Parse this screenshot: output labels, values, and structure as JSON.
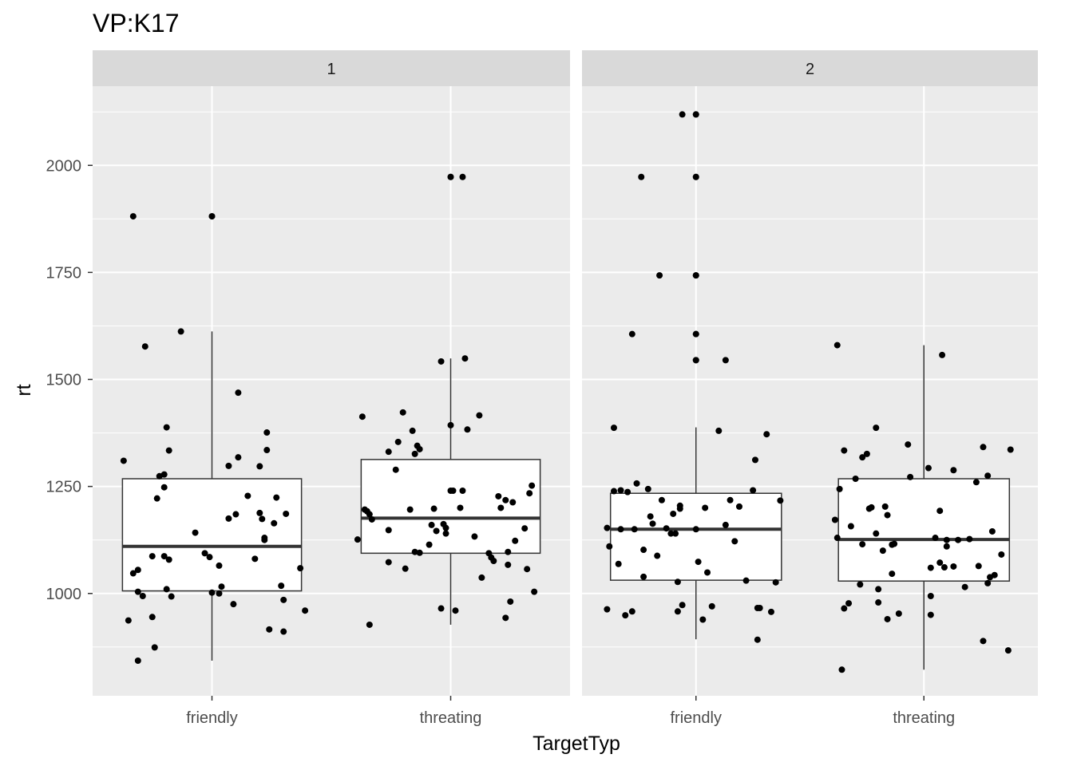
{
  "chart_data": {
    "type": "box",
    "title": "VP:K17",
    "xlabel": "TargetTyp",
    "ylabel": "rt",
    "ylim": [
      761,
      2185
    ],
    "y_ticks": [
      1000,
      1250,
      1500,
      1750,
      2000
    ],
    "y_tick_labels": [
      "1000",
      "1250",
      "1500",
      "1750",
      "2000"
    ],
    "categories": [
      "friendly",
      "threating"
    ],
    "grid": true,
    "facets": [
      {
        "label": "1",
        "boxes": [
          {
            "category": "friendly",
            "q1": 1006,
            "median": 1110,
            "q3": 1268,
            "whisker_low": 843,
            "whisker_high": 1612,
            "outliers": [
              1881
            ],
            "points": [
              [
                -0.37,
                1310
              ],
              [
                -0.33,
                1881
              ],
              [
                -0.35,
                937
              ],
              [
                -0.31,
                1004
              ],
              [
                -0.29,
                994
              ],
              [
                -0.33,
                1047
              ],
              [
                -0.31,
                1055
              ],
              [
                -0.31,
                843
              ],
              [
                -0.28,
                1577
              ],
              [
                -0.25,
                945
              ],
              [
                -0.25,
                1087
              ],
              [
                -0.23,
                1222
              ],
              [
                -0.24,
                874
              ],
              [
                -0.22,
                1274
              ],
              [
                -0.2,
                1087
              ],
              [
                -0.2,
                1278
              ],
              [
                -0.2,
                1248
              ],
              [
                -0.19,
                1388
              ],
              [
                -0.19,
                1010
              ],
              [
                -0.18,
                1079
              ],
              [
                -0.18,
                1334
              ],
              [
                -0.17,
                993
              ],
              [
                -0.13,
                1612
              ],
              [
                -0.07,
                1142
              ],
              [
                -0.03,
                1094
              ],
              [
                0,
                1881
              ],
              [
                -0.01,
                1085
              ],
              [
                0,
                1002
              ],
              [
                0.03,
                1065
              ],
              [
                0.03,
                1000
              ],
              [
                0.04,
                1016
              ],
              [
                0.07,
                1298
              ],
              [
                0.07,
                1175
              ],
              [
                0.09,
                975
              ],
              [
                0.1,
                1185
              ],
              [
                0.11,
                1318
              ],
              [
                0.11,
                1469
              ],
              [
                0.15,
                1228
              ],
              [
                0.18,
                1081
              ],
              [
                0.2,
                1188
              ],
              [
                0.2,
                1297
              ],
              [
                0.21,
                1174
              ],
              [
                0.22,
                1125
              ],
              [
                0.22,
                1130
              ],
              [
                0.23,
                1376
              ],
              [
                0.23,
                1335
              ],
              [
                0.24,
                916
              ],
              [
                0.26,
                1164
              ],
              [
                0.27,
                1224
              ],
              [
                0.29,
                1018
              ],
              [
                0.3,
                985
              ],
              [
                0.3,
                911
              ],
              [
                0.31,
                1186
              ],
              [
                0.37,
                1059
              ],
              [
                0.39,
                960
              ]
            ]
          },
          {
            "category": "threating",
            "q1": 1094,
            "median": 1176,
            "q3": 1313,
            "whisker_low": 927,
            "whisker_high": 1549,
            "outliers": [
              1973
            ],
            "points": [
              [
                -0.39,
                1126
              ],
              [
                -0.37,
                1413
              ],
              [
                -0.36,
                1196
              ],
              [
                -0.35,
                1192
              ],
              [
                -0.34,
                1185
              ],
              [
                -0.34,
                927
              ],
              [
                -0.33,
                1173
              ],
              [
                -0.26,
                1148
              ],
              [
                -0.26,
                1331
              ],
              [
                -0.26,
                1073
              ],
              [
                -0.23,
                1289
              ],
              [
                -0.22,
                1354
              ],
              [
                -0.2,
                1423
              ],
              [
                -0.19,
                1058
              ],
              [
                -0.17,
                1196
              ],
              [
                -0.16,
                1380
              ],
              [
                -0.15,
                1097
              ],
              [
                -0.15,
                1326
              ],
              [
                -0.14,
                1345
              ],
              [
                -0.13,
                1337
              ],
              [
                -0.13,
                1095
              ],
              [
                -0.09,
                1114
              ],
              [
                -0.08,
                1160
              ],
              [
                -0.07,
                1198
              ],
              [
                -0.06,
                1146
              ],
              [
                -0.04,
                1542
              ],
              [
                -0.04,
                965
              ],
              [
                -0.03,
                1162
              ],
              [
                -0.02,
                1153
              ],
              [
                -0.02,
                1140
              ],
              [
                0,
                1973
              ],
              [
                0,
                1393
              ],
              [
                0,
                1240
              ],
              [
                0.01,
                1240
              ],
              [
                0.02,
                960
              ],
              [
                0.04,
                1200
              ],
              [
                0.05,
                1973
              ],
              [
                0.05,
                1240
              ],
              [
                0.06,
                1549
              ],
              [
                0.07,
                1383
              ],
              [
                0.1,
                1133
              ],
              [
                0.12,
                1416
              ],
              [
                0.13,
                1037
              ],
              [
                0.16,
                1094
              ],
              [
                0.17,
                1084
              ],
              [
                0.18,
                1076
              ],
              [
                0.2,
                1227
              ],
              [
                0.21,
                1200
              ],
              [
                0.23,
                943
              ],
              [
                0.23,
                1218
              ],
              [
                0.24,
                1097
              ],
              [
                0.24,
                1067
              ],
              [
                0.25,
                981
              ],
              [
                0.26,
                1213
              ],
              [
                0.27,
                1123
              ],
              [
                0.31,
                1152
              ],
              [
                0.32,
                1057
              ],
              [
                0.33,
                1234
              ],
              [
                0.34,
                1252
              ],
              [
                0.35,
                1004
              ]
            ]
          }
        ]
      },
      {
        "label": "2",
        "boxes": [
          {
            "category": "friendly",
            "q1": 1031,
            "median": 1150,
            "q3": 1234,
            "whisker_low": 893,
            "whisker_high": 1388,
            "outliers": [
              2119,
              1973,
              1743,
              1606,
              1545
            ],
            "points": [
              [
                -0.39,
                1153
              ],
              [
                -0.39,
                963
              ],
              [
                -0.38,
                1110
              ],
              [
                -0.36,
                1387
              ],
              [
                -0.36,
                1239
              ],
              [
                -0.34,
                1069
              ],
              [
                -0.33,
                1241
              ],
              [
                -0.33,
                1150
              ],
              [
                -0.31,
                949
              ],
              [
                -0.3,
                1237
              ],
              [
                -0.28,
                958
              ],
              [
                -0.28,
                1606
              ],
              [
                -0.27,
                1150
              ],
              [
                -0.26,
                1257
              ],
              [
                -0.24,
                1973
              ],
              [
                -0.23,
                1039
              ],
              [
                -0.23,
                1102
              ],
              [
                -0.21,
                1244
              ],
              [
                -0.2,
                1180
              ],
              [
                -0.19,
                1163
              ],
              [
                -0.17,
                1088
              ],
              [
                -0.16,
                1743
              ],
              [
                -0.15,
                1218
              ],
              [
                -0.13,
                1152
              ],
              [
                -0.11,
                1140
              ],
              [
                -0.1,
                1186
              ],
              [
                -0.09,
                1140
              ],
              [
                -0.08,
                958
              ],
              [
                -0.08,
                1027
              ],
              [
                -0.07,
                1198
              ],
              [
                -0.07,
                1205
              ],
              [
                -0.06,
                973
              ],
              [
                -0.06,
                2119
              ],
              [
                0,
                2119
              ],
              [
                0,
                1973
              ],
              [
                0,
                1743
              ],
              [
                0,
                1606
              ],
              [
                0,
                1545
              ],
              [
                0,
                1150
              ],
              [
                0.01,
                1074
              ],
              [
                0.03,
                939
              ],
              [
                0.04,
                1200
              ],
              [
                0.05,
                1049
              ],
              [
                0.07,
                970
              ],
              [
                0.1,
                1380
              ],
              [
                0.13,
                1545
              ],
              [
                0.13,
                1160
              ],
              [
                0.15,
                1218
              ],
              [
                0.17,
                1122
              ],
              [
                0.19,
                1203
              ],
              [
                0.22,
                1030
              ],
              [
                0.25,
                1241
              ],
              [
                0.26,
                1312
              ],
              [
                0.27,
                966
              ],
              [
                0.27,
                892
              ],
              [
                0.28,
                966
              ],
              [
                0.31,
                1372
              ],
              [
                0.33,
                957
              ],
              [
                0.35,
                1026
              ],
              [
                0.37,
                1217
              ]
            ]
          },
          {
            "category": "threating",
            "q1": 1029,
            "median": 1126,
            "q3": 1268,
            "whisker_low": 822,
            "whisker_high": 1580,
            "outliers": [],
            "points": [
              [
                -0.39,
                1172
              ],
              [
                -0.38,
                1580
              ],
              [
                -0.38,
                1130
              ],
              [
                -0.37,
                1244
              ],
              [
                -0.36,
                822
              ],
              [
                -0.35,
                965
              ],
              [
                -0.35,
                1334
              ],
              [
                -0.33,
                977
              ],
              [
                -0.32,
                1157
              ],
              [
                -0.3,
                1268
              ],
              [
                -0.28,
                1021
              ],
              [
                -0.27,
                1318
              ],
              [
                -0.27,
                1115
              ],
              [
                -0.25,
                1326
              ],
              [
                -0.24,
                1198
              ],
              [
                -0.23,
                1201
              ],
              [
                -0.21,
                1387
              ],
              [
                -0.21,
                1140
              ],
              [
                -0.2,
                1010
              ],
              [
                -0.2,
                979
              ],
              [
                -0.18,
                1100
              ],
              [
                -0.17,
                1203
              ],
              [
                -0.16,
                940
              ],
              [
                -0.16,
                1183
              ],
              [
                -0.14,
                1046
              ],
              [
                -0.14,
                1114
              ],
              [
                -0.13,
                1116
              ],
              [
                -0.11,
                953
              ],
              [
                -0.07,
                1348
              ],
              [
                -0.06,
                1272
              ],
              [
                0.02,
                1293
              ],
              [
                0.03,
                1060
              ],
              [
                0.03,
                994
              ],
              [
                0.03,
                950
              ],
              [
                0.05,
                1130
              ],
              [
                0.07,
                1072
              ],
              [
                0.07,
                1193
              ],
              [
                0.08,
                1557
              ],
              [
                0.09,
                1061
              ],
              [
                0.1,
                1125
              ],
              [
                0.1,
                1110
              ],
              [
                0.13,
                1288
              ],
              [
                0.13,
                1063
              ],
              [
                0.15,
                1125
              ],
              [
                0.18,
                1015
              ],
              [
                0.2,
                1127
              ],
              [
                0.23,
                1260
              ],
              [
                0.24,
                1064
              ],
              [
                0.26,
                1342
              ],
              [
                0.26,
                889
              ],
              [
                0.28,
                1275
              ],
              [
                0.28,
                1024
              ],
              [
                0.29,
                1038
              ],
              [
                0.3,
                1145
              ],
              [
                0.31,
                1043
              ],
              [
                0.34,
                1091
              ],
              [
                0.37,
                867
              ],
              [
                0.38,
                1336
              ]
            ]
          }
        ]
      }
    ]
  }
}
